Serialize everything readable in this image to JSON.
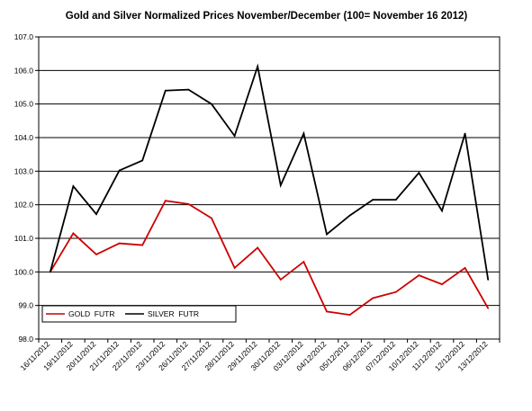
{
  "chart_data": {
    "type": "line",
    "title": "Gold and Silver Normalized Prices November/December (100= November 16 2012)",
    "xlabel": "",
    "ylabel": "",
    "ylim": [
      98.0,
      107.0
    ],
    "yticks": [
      "98.0",
      "99.0",
      "100.0",
      "101.0",
      "102.0",
      "103.0",
      "104.0",
      "105.0",
      "106.0",
      "107.0"
    ],
    "grid": true,
    "legend_position": "bottom-left",
    "categories": [
      "16/11/2012",
      "19/11/2012",
      "20/11/2012",
      "21/11/2012",
      "22/11/2012",
      "23/11/2012",
      "26/11/2012",
      "27/11/2012",
      "28/11/2012",
      "29/11/2012",
      "30/11/2012",
      "03/12/2012",
      "04/12/2012",
      "05/12/2012",
      "06/12/2012",
      "07/12/2012",
      "10/12/2012",
      "11/12/2012",
      "12/12/2012",
      "13/12/2012"
    ],
    "series": [
      {
        "name": "GOLD  FUTR",
        "color": "#cc0000",
        "values": [
          100.0,
          101.15,
          100.52,
          100.85,
          100.8,
          102.12,
          102.02,
          101.6,
          100.12,
          100.72,
          99.77,
          100.3,
          98.82,
          98.72,
          99.22,
          99.4,
          99.9,
          99.63,
          100.12,
          98.92
        ]
      },
      {
        "name": "SILVER  FUTR",
        "color": "#000000",
        "values": [
          100.0,
          102.55,
          101.72,
          103.02,
          103.32,
          105.4,
          105.43,
          105.0,
          104.05,
          106.12,
          102.58,
          104.12,
          101.12,
          101.68,
          102.15,
          102.15,
          102.95,
          101.82,
          104.12,
          99.77
        ]
      }
    ]
  }
}
